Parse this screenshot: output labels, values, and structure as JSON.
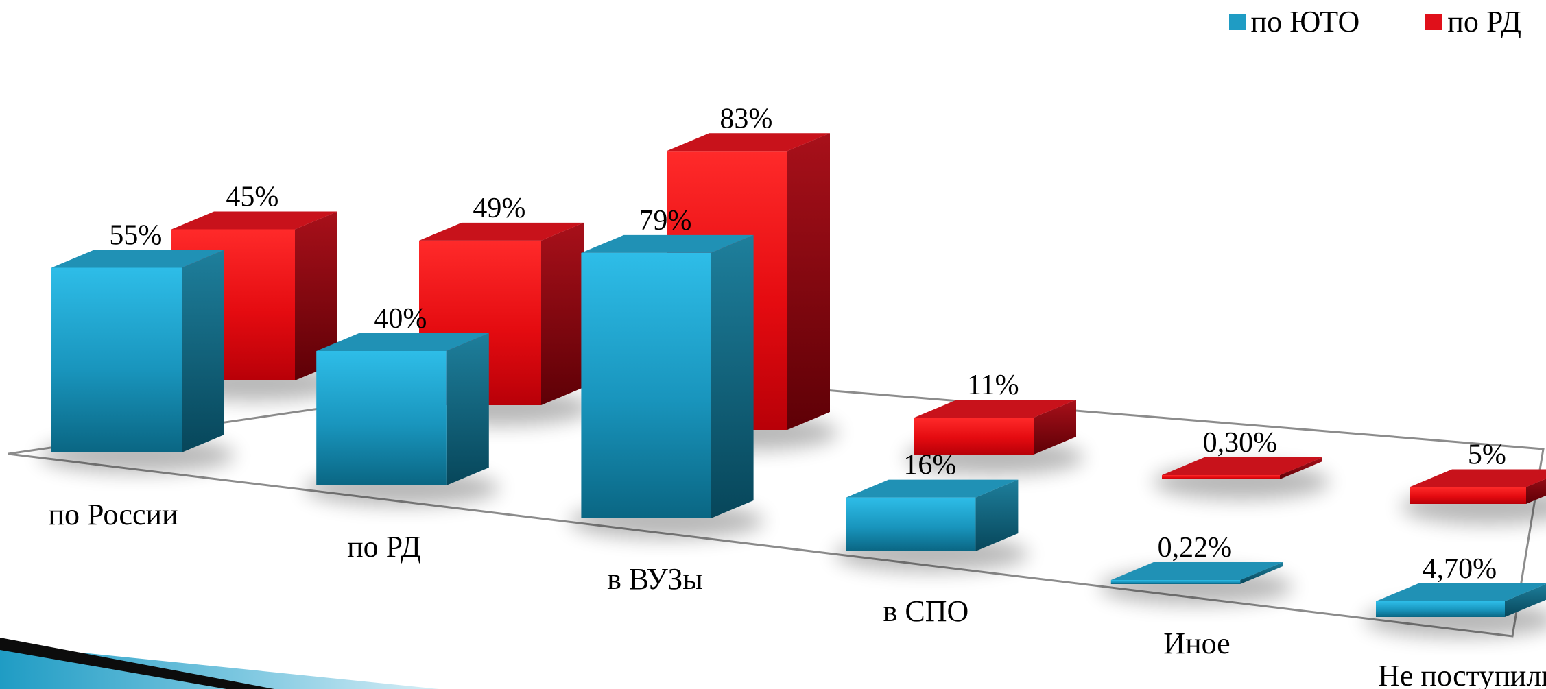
{
  "legend": {
    "series0": "по ЮТО",
    "series1": "по РД"
  },
  "chart_data": {
    "type": "bar",
    "categories": [
      "по России",
      "по РД",
      "в ВУЗы",
      "в СПО",
      "Иное",
      "Не поступили"
    ],
    "series": [
      {
        "name": "по ЮТО",
        "values": [
          55,
          40,
          79,
          16,
          0.22,
          4.7
        ],
        "labels": [
          "55%",
          "40%",
          "79%",
          "16%",
          "0,22%",
          "4,70%"
        ],
        "color": "#1f9cc4"
      },
      {
        "name": "по РД",
        "values": [
          45,
          49,
          83,
          11,
          0.3,
          5
        ],
        "labels": [
          "45%",
          "49%",
          "83%",
          "11%",
          "0,30%",
          "5%"
        ],
        "color": "#e0101a"
      }
    ],
    "title": "",
    "xlabel": "",
    "ylabel": "",
    "ylim": [
      0,
      90
    ],
    "unit": "%",
    "legend_position": "top-right",
    "style": "3d-clustered-column",
    "grid": false
  }
}
